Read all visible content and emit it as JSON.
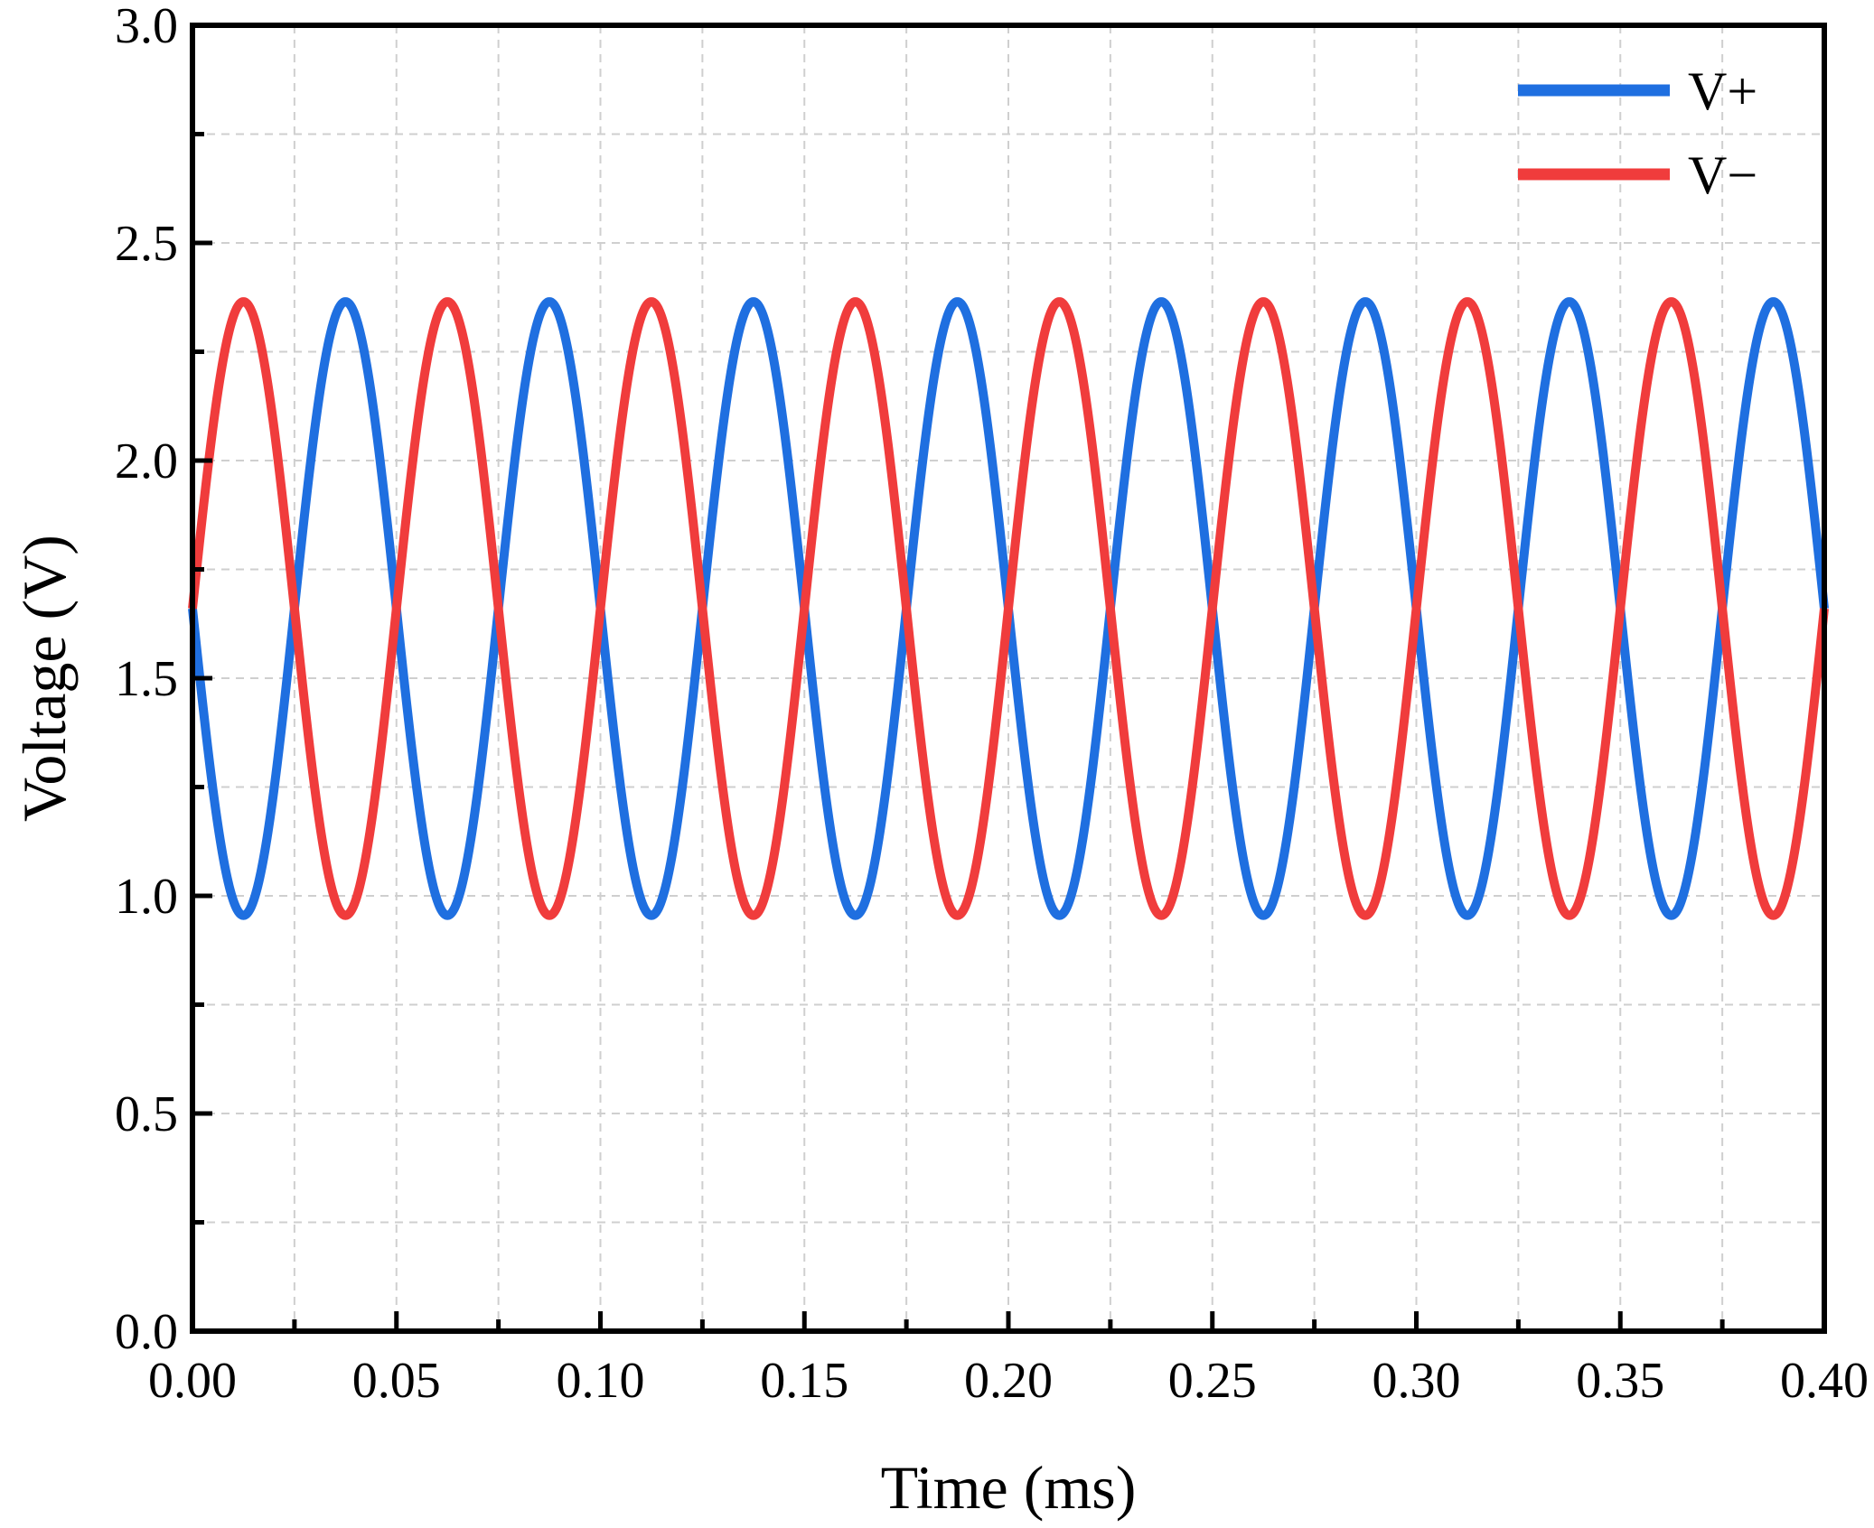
{
  "chart_data": {
    "type": "line",
    "title": "",
    "xlabel": "Time (ms)",
    "ylabel": "Voltage (V)",
    "xlim": [
      0.0,
      0.4
    ],
    "ylim": [
      0.0,
      3.0
    ],
    "x_ticks": [
      "0.00",
      "0.05",
      "0.10",
      "0.15",
      "0.20",
      "0.25",
      "0.30",
      "0.35",
      "0.40"
    ],
    "y_ticks": [
      "0.0",
      "0.5",
      "1.0",
      "1.5",
      "2.0",
      "2.5",
      "3.0"
    ],
    "grid": true,
    "legend_position": "top-right",
    "series": [
      {
        "name": "V+",
        "color": "#1f6fe0",
        "offset": 1.66,
        "amplitude": 0.705,
        "frequency_khz": 20,
        "phase": "inverted-sine",
        "x_start": 0.0,
        "x_end": 0.4
      },
      {
        "name": "V−",
        "color": "#f03c3c",
        "offset": 1.66,
        "amplitude": 0.705,
        "frequency_khz": 20,
        "phase": "sine",
        "x_start": 0.0,
        "x_end": 0.4
      }
    ]
  }
}
